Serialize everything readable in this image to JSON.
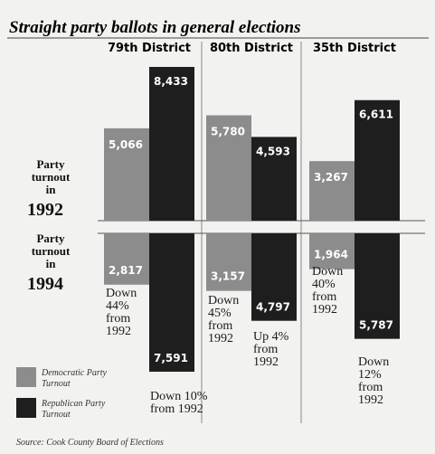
{
  "chart_data": {
    "type": "bar",
    "title": "Straight party ballots in general elections",
    "categories": [
      "79th District",
      "80th District",
      "35th District"
    ],
    "row_labels": [
      {
        "lines": [
          "Party",
          "turnout",
          "in"
        ],
        "year": "1992"
      },
      {
        "lines": [
          "Party",
          "turnout",
          "in"
        ],
        "year": "1994"
      }
    ],
    "series": [
      {
        "name": "Democratic Party Turnout",
        "color": "#8c8c8c",
        "values_1992": [
          5066,
          5780,
          3267
        ],
        "values_1994": [
          2817,
          3157,
          1964
        ],
        "labels_1992": [
          "5,066",
          "5,780",
          "3,267"
        ],
        "labels_1994": [
          "2,817",
          "3,157",
          "1,964"
        ]
      },
      {
        "name": "Republican Party Turnout",
        "color": "#1e1e1e",
        "values_1992": [
          8433,
          4593,
          6611
        ],
        "values_1994": [
          7591,
          4797,
          5787
        ],
        "labels_1992": [
          "8,433",
          "4,593",
          "6,611"
        ],
        "labels_1994": [
          "7,591",
          "4,797",
          "5,787"
        ]
      }
    ],
    "annotations": [
      {
        "district": 0,
        "party": "dem",
        "lines": [
          "Down",
          "44%",
          "from",
          "1992"
        ]
      },
      {
        "district": 0,
        "party": "rep",
        "lines": [
          "Down 10%",
          "from 1992"
        ]
      },
      {
        "district": 1,
        "party": "dem",
        "lines": [
          "Down",
          "45%",
          "from",
          "1992"
        ]
      },
      {
        "district": 1,
        "party": "rep",
        "lines": [
          "Up 4%",
          "from",
          "1992"
        ]
      },
      {
        "district": 2,
        "party": "dem",
        "lines": [
          "Down",
          "40%",
          "from",
          "1992"
        ]
      },
      {
        "district": 2,
        "party": "rep",
        "lines": [
          "Down",
          "12%",
          "from",
          "1992"
        ]
      }
    ],
    "legend": [
      {
        "lines": [
          "Democratic Party",
          "Turnout"
        ],
        "color": "#8c8c8c"
      },
      {
        "lines": [
          "Republican Party",
          "Turnout"
        ],
        "color": "#1e1e1e"
      }
    ],
    "source": "Source: Cook County Board of Elections"
  }
}
